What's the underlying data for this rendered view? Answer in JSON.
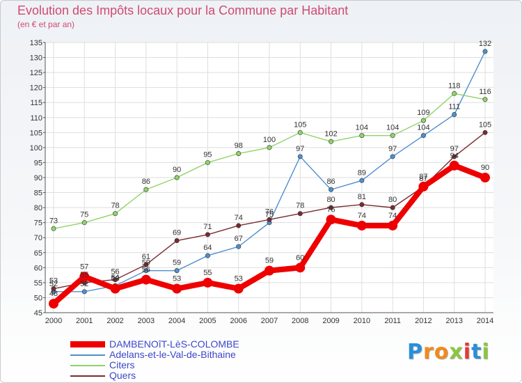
{
  "title": "Evolution des Impôts locaux pour la Commune par Habitant",
  "subtitle": "(en € et par an)",
  "logo": {
    "text": "Proxiti",
    "letters": [
      {
        "ch": "P",
        "color": "#2a8fd8"
      },
      {
        "ch": "r",
        "color": "#f18a1c"
      },
      {
        "ch": "o",
        "color": "#f18a1c"
      },
      {
        "ch": "x",
        "color": "#8cc63f"
      },
      {
        "ch": "i",
        "color": "#e53935"
      },
      {
        "ch": "t",
        "color": "#2a8fd8"
      },
      {
        "ch": "i",
        "color": "#8cc63f"
      }
    ]
  },
  "chart_data": {
    "type": "line",
    "x": [
      2000,
      2001,
      2002,
      2003,
      2004,
      2005,
      2006,
      2007,
      2008,
      2009,
      2010,
      2011,
      2012,
      2013,
      2014
    ],
    "ylim": [
      45,
      135
    ],
    "yticks": [
      45,
      50,
      55,
      60,
      65,
      70,
      75,
      80,
      85,
      90,
      95,
      100,
      105,
      110,
      115,
      120,
      125,
      130,
      135
    ],
    "grid": true,
    "legend_position": "bottom-left",
    "series": [
      {
        "name": "Adelans-et-le-Val-de-Bithaine",
        "color": "#4f8fce",
        "style": "thin",
        "values": [
          52,
          52,
          54,
          59,
          59,
          64,
          67,
          75,
          97,
          86,
          89,
          97,
          104,
          111,
          132
        ]
      },
      {
        "name": "Citers",
        "color": "#8fd46a",
        "style": "thin",
        "values": [
          73,
          75,
          78,
          86,
          90,
          95,
          98,
          100,
          105,
          102,
          104,
          104,
          109,
          118,
          116
        ]
      },
      {
        "name": "Quers",
        "color": "#7a2a2e",
        "style": "thin",
        "values": [
          53,
          55,
          56,
          61,
          69,
          71,
          74,
          76,
          78,
          80,
          81,
          80,
          87,
          97,
          105
        ]
      },
      {
        "name": "DAMBENOîT-LèS-COLOMBE",
        "color": "#ee0000",
        "style": "thick",
        "values": [
          48,
          57,
          53,
          56,
          53,
          55,
          53,
          59,
          60,
          76,
          74,
          74,
          87,
          94,
          90
        ]
      }
    ],
    "legend_order": [
      "DAMBENOîT-LèS-COLOMBE",
      "Adelans-et-le-Val-de-Bithaine",
      "Citers",
      "Quers"
    ]
  }
}
